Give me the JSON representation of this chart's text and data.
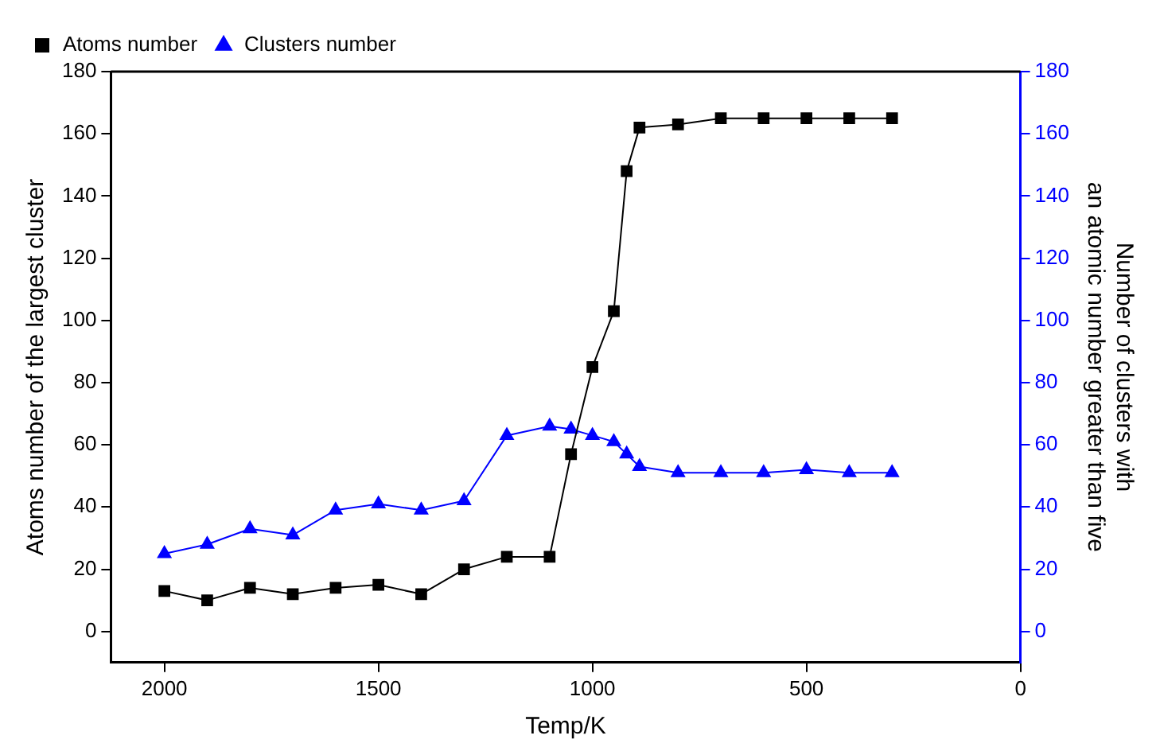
{
  "chart_data": {
    "type": "line",
    "xlabel": "Temp/K",
    "ylabel": "Atoms number of the largest cluster",
    "y2label": "Number of clusters with\nan atomic number greater than five",
    "x": [
      2000,
      1900,
      1800,
      1700,
      1600,
      1500,
      1400,
      1300,
      1200,
      1100,
      1050,
      1000,
      950,
      920,
      890,
      800,
      700,
      600,
      500,
      400,
      300
    ],
    "series": [
      {
        "name": "Atoms number",
        "color": "#000000",
        "marker": "square",
        "values": [
          13,
          10,
          14,
          12,
          14,
          15,
          12,
          20,
          24,
          24,
          57,
          85,
          103,
          148,
          162,
          163,
          165,
          165,
          165,
          165,
          165
        ]
      },
      {
        "name": "Clusters number",
        "color": "#0000ff",
        "marker": "triangle",
        "axis": "y2",
        "values": [
          25,
          28,
          33,
          31,
          39,
          41,
          39,
          42,
          63,
          66,
          65,
          63,
          61,
          57,
          53,
          51,
          51,
          51,
          52,
          51,
          51
        ]
      }
    ],
    "xlim": [
      2125,
      0
    ],
    "xticks": [
      2000,
      1500,
      1000,
      500,
      0
    ],
    "ylim": [
      -10,
      180
    ],
    "yticks": [
      0,
      20,
      40,
      60,
      80,
      100,
      120,
      140,
      160,
      180
    ],
    "y2lim": [
      -10,
      180
    ],
    "y2ticks": [
      0,
      20,
      40,
      60,
      80,
      100,
      120,
      140,
      160,
      180
    ],
    "grid": false,
    "legend": "top left",
    "line_style": "solid"
  }
}
